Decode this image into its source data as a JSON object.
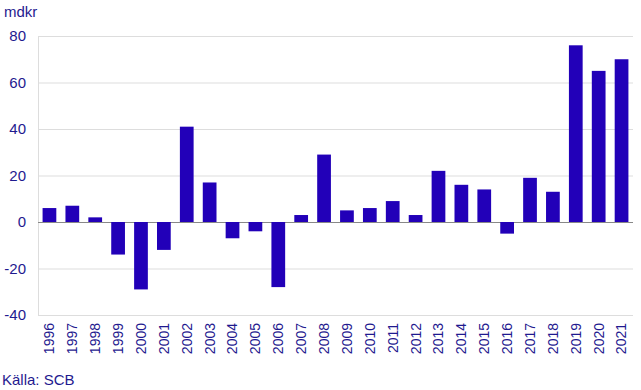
{
  "chart_data": {
    "type": "bar",
    "y_label": "mdkr",
    "source": "Källa: SCB",
    "categories": [
      "1996",
      "1997",
      "1998",
      "1999",
      "2000",
      "2001",
      "2002",
      "2003",
      "2004",
      "2005",
      "2006",
      "2007",
      "2008",
      "2009",
      "2010",
      "2011",
      "2012",
      "2013",
      "2014",
      "2015",
      "2016",
      "2017",
      "2018",
      "2019",
      "2020",
      "2021"
    ],
    "values": [
      6,
      7,
      2,
      -14,
      -29,
      -12,
      41,
      17,
      -7,
      -4,
      -28,
      3,
      29,
      5,
      6,
      9,
      3,
      22,
      16,
      14,
      -5,
      19,
      13,
      76,
      65,
      70
    ],
    "color": "#2200b8",
    "ylim": [
      -40,
      80
    ],
    "yticks": [
      -40,
      -20,
      0,
      20,
      40,
      60,
      80
    ],
    "grid": true
  }
}
